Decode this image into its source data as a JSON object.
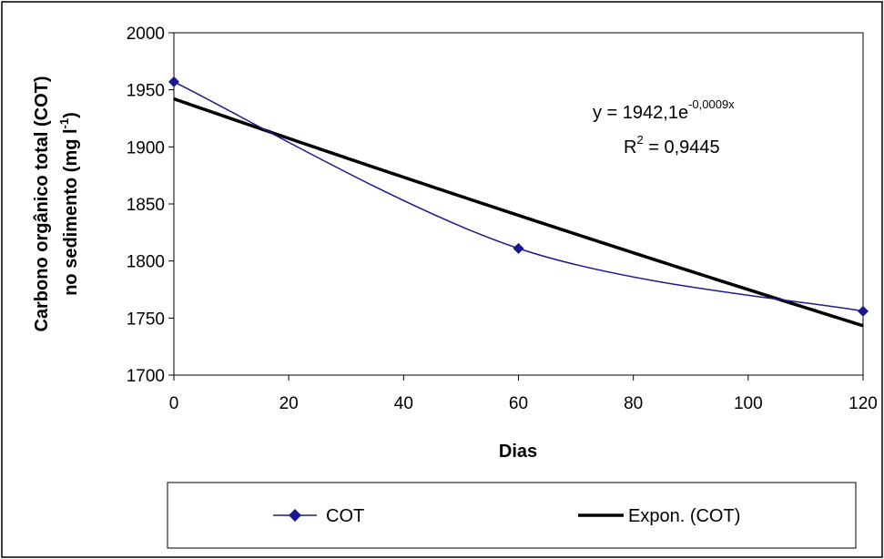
{
  "chart_data": {
    "type": "scatter",
    "xlabel": "Dias",
    "ylabel_line1": "Carbono orgânico total (COT)",
    "ylabel_line2_prefix": "no sedimento (mg l",
    "ylabel_line2_sup": "-1",
    "ylabel_line2_suffix": ")",
    "xlim": [
      0,
      120
    ],
    "ylim": [
      1700,
      2000
    ],
    "x_ticks": [
      0,
      20,
      40,
      60,
      80,
      100,
      120
    ],
    "y_ticks": [
      1700,
      1750,
      1800,
      1850,
      1900,
      1950,
      2000
    ],
    "grid": false,
    "legend_position": "bottom",
    "series": [
      {
        "name": "COT",
        "x": [
          0,
          60,
          120
        ],
        "y": [
          1957,
          1811,
          1756
        ],
        "color": "#1a1a8c",
        "marker": "diamond",
        "style": "smoothed-line"
      },
      {
        "name": "Expon. (COT)",
        "type": "trendline-exponential",
        "a": 1942.1,
        "b": -0.0009,
        "color": "#000000"
      }
    ],
    "equation": {
      "prefix": "y = 1942,1e",
      "exponent": "-0,0009x",
      "r2_prefix": "R",
      "r2_sup": "2",
      "r2_suffix": " = 0,9445"
    }
  }
}
